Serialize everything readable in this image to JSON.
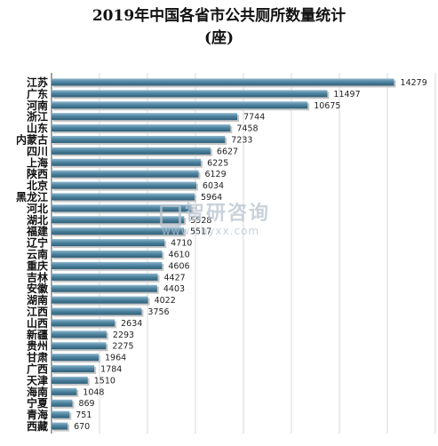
{
  "chart_data": {
    "type": "bar",
    "orientation": "horizontal",
    "title": "2019年中国各省市公共厕所数量统计",
    "subtitle": "(座)",
    "categories": [
      "江苏",
      "广东",
      "河南",
      "浙江",
      "山东",
      "内蒙古",
      "四川",
      "上海",
      "陕西",
      "北京",
      "黑龙江",
      "河北",
      "湖北",
      "福建",
      "辽宁",
      "云南",
      "重庆",
      "吉林",
      "安徽",
      "湖南",
      "江西",
      "山西",
      "新疆",
      "贵州",
      "甘肃",
      "广西",
      "天津",
      "海南",
      "宁夏",
      "青海",
      "西藏"
    ],
    "values": [
      14279,
      11497,
      10675,
      7744,
      7458,
      7233,
      6627,
      6225,
      6129,
      6034,
      5964,
      5832,
      5528,
      5517,
      4710,
      4610,
      4606,
      4427,
      4403,
      4022,
      3756,
      2634,
      2293,
      2275,
      1964,
      1784,
      1510,
      1048,
      869,
      751,
      670
    ],
    "value_labels": [
      "14279",
      "11497",
      "10675",
      "7744",
      "7458",
      "7233",
      "6627",
      "6225",
      "6129",
      "6034",
      "5964",
      "",
      "5528",
      "5517",
      "4710",
      "4610",
      "4606",
      "4427",
      "4403",
      "4022",
      "3756",
      "2634",
      "2293",
      "2275",
      "1964",
      "1784",
      "1510",
      "1048",
      "869",
      "751",
      "670"
    ],
    "xlim": [
      0,
      16000
    ],
    "grid": true,
    "bar_color": "#4f86a2"
  },
  "watermark": {
    "name": "智研咨询",
    "url": "www.chyxx.com"
  }
}
